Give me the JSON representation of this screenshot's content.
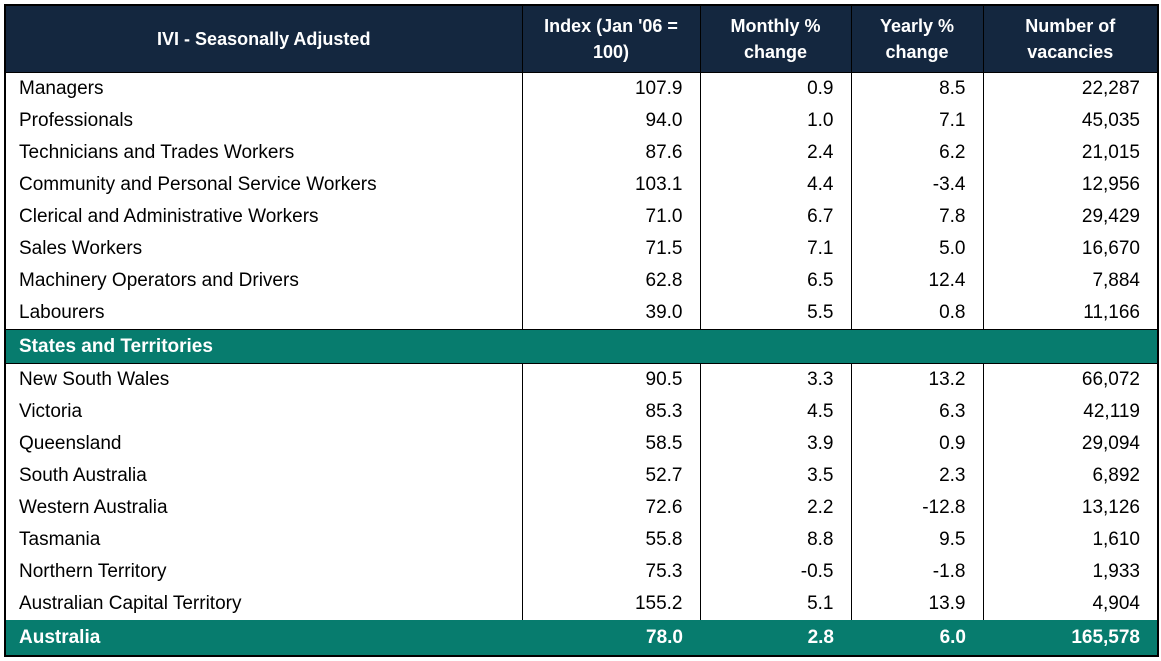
{
  "colors": {
    "header_bg": "#14273F",
    "accent_bg": "#077C6E",
    "grid": "#000000",
    "header_text": "#FFFFFF",
    "body_text": "#000000"
  },
  "chart_data": {
    "type": "table",
    "title": "IVI - Seasonally Adjusted",
    "columns": [
      "IVI - Seasonally Adjusted",
      "Index (Jan '06 = 100)",
      "Monthly % change",
      "Yearly % change",
      "Number of vacancies"
    ],
    "sections": [
      {
        "name": "",
        "rows": [
          [
            "Managers",
            "107.9",
            "0.9",
            "8.5",
            "22,287"
          ],
          [
            "Professionals",
            "94.0",
            "1.0",
            "7.1",
            "45,035"
          ],
          [
            "Technicians and Trades Workers",
            "87.6",
            "2.4",
            "6.2",
            "21,015"
          ],
          [
            "Community and Personal Service Workers",
            "103.1",
            "4.4",
            "-3.4",
            "12,956"
          ],
          [
            "Clerical and Administrative Workers",
            "71.0",
            "6.7",
            "7.8",
            "29,429"
          ],
          [
            "Sales Workers",
            "71.5",
            "7.1",
            "5.0",
            "16,670"
          ],
          [
            "Machinery Operators and Drivers",
            "62.8",
            "6.5",
            "12.4",
            "7,884"
          ],
          [
            "Labourers",
            "39.0",
            "5.5",
            "0.8",
            "11,166"
          ]
        ]
      },
      {
        "name": "States and Territories",
        "rows": [
          [
            "New South Wales",
            "90.5",
            "3.3",
            "13.2",
            "66,072"
          ],
          [
            "Victoria",
            "85.3",
            "4.5",
            "6.3",
            "42,119"
          ],
          [
            "Queensland",
            "58.5",
            "3.9",
            "0.9",
            "29,094"
          ],
          [
            "South Australia",
            "52.7",
            "3.5",
            "2.3",
            "6,892"
          ],
          [
            "Western Australia",
            "72.6",
            "2.2",
            "-12.8",
            "13,126"
          ],
          [
            "Tasmania",
            "55.8",
            "8.8",
            "9.5",
            "1,610"
          ],
          [
            "Northern Territory",
            "75.3",
            "-0.5",
            "-1.8",
            "1,933"
          ],
          [
            "Australian Capital Territory",
            "155.2",
            "5.1",
            "13.9",
            "4,904"
          ]
        ]
      }
    ],
    "footer": [
      "Australia",
      "78.0",
      "2.8",
      "6.0",
      "165,578"
    ]
  }
}
